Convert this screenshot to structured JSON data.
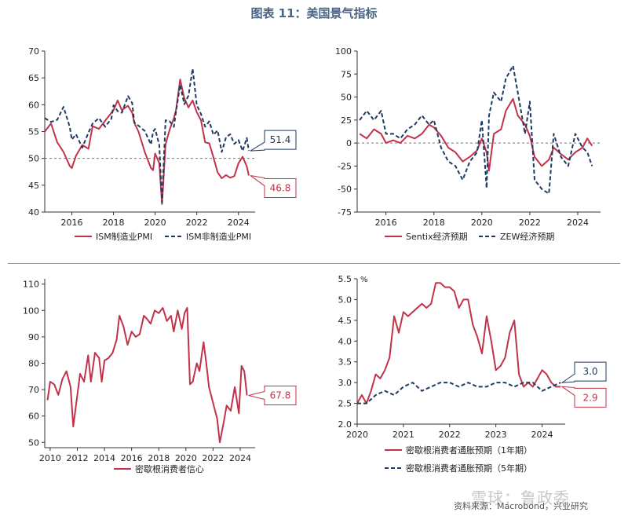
{
  "title": "图表 11：美国景气指标",
  "source": "资料来源：Macrobond，兴业研究",
  "watermark": "雪球：鲁政委",
  "colors": {
    "red": "#c0334a",
    "navy": "#1f3a60",
    "ref": "#777777"
  },
  "chart_data": [
    {
      "type": "line",
      "id": "pmi",
      "ylim": [
        40,
        70
      ],
      "yticks": [
        40,
        45,
        50,
        55,
        60,
        65,
        70
      ],
      "xlim": [
        2014.7,
        2024.8
      ],
      "xticks": [
        2016,
        2018,
        2020,
        2022,
        2024
      ],
      "reference_line": 50,
      "callouts": [
        {
          "label": "51.4",
          "value": 51.4,
          "series": 1
        },
        {
          "label": "46.8",
          "value": 46.8,
          "series": 0
        }
      ],
      "series": [
        {
          "name": "ISM制造业PMI",
          "style": "solid",
          "color": "red",
          "x": [
            2014.7,
            2015.0,
            2015.3,
            2015.6,
            2015.9,
            2016.0,
            2016.2,
            2016.5,
            2016.8,
            2017.0,
            2017.3,
            2017.6,
            2017.9,
            2018.0,
            2018.2,
            2018.4,
            2018.7,
            2018.9,
            2019.0,
            2019.2,
            2019.5,
            2019.8,
            2019.9,
            2020.0,
            2020.2,
            2020.33,
            2020.5,
            2020.7,
            2020.9,
            2021.0,
            2021.2,
            2021.4,
            2021.6,
            2021.8,
            2022.0,
            2022.2,
            2022.4,
            2022.6,
            2022.8,
            2023.0,
            2023.2,
            2023.4,
            2023.6,
            2023.8,
            2024.0,
            2024.2,
            2024.4,
            2024.5
          ],
          "y": [
            55,
            56.5,
            53,
            51.2,
            48.6,
            48.2,
            50.5,
            52.5,
            51.8,
            56,
            55.5,
            57,
            58.5,
            59,
            60.8,
            59,
            59.8,
            58.5,
            56.6,
            55,
            51.2,
            48.2,
            47.8,
            50.9,
            49.1,
            41.5,
            52.6,
            55.4,
            57.5,
            59,
            64.7,
            61.2,
            59.5,
            60.8,
            58.6,
            57.1,
            53,
            52.8,
            50.2,
            47.4,
            46.3,
            46.9,
            46.4,
            46.7,
            49.1,
            50.3,
            48.5,
            46.8
          ]
        },
        {
          "name": "ISM非制造业PMI",
          "style": "dashed",
          "color": "navy",
          "x": [
            2014.7,
            2015.0,
            2015.3,
            2015.6,
            2015.9,
            2016.0,
            2016.2,
            2016.5,
            2016.8,
            2017.0,
            2017.3,
            2017.6,
            2017.9,
            2018.0,
            2018.2,
            2018.4,
            2018.7,
            2018.9,
            2019.0,
            2019.2,
            2019.5,
            2019.8,
            2019.9,
            2020.0,
            2020.2,
            2020.33,
            2020.5,
            2020.7,
            2020.9,
            2021.0,
            2021.2,
            2021.4,
            2021.6,
            2021.8,
            2022.0,
            2022.2,
            2022.4,
            2022.6,
            2022.8,
            2023.0,
            2023.2,
            2023.4,
            2023.6,
            2023.8,
            2024.0,
            2024.2,
            2024.4,
            2024.5
          ],
          "y": [
            57.5,
            56.8,
            57.2,
            59.6,
            55.9,
            53.5,
            54.5,
            52,
            54.8,
            56.5,
            57.5,
            55.9,
            57.4,
            59.9,
            58.8,
            58.5,
            61.6,
            60.3,
            56.7,
            56.1,
            55.1,
            52.6,
            55,
            55.5,
            52.5,
            41.8,
            57.1,
            56.9,
            55.9,
            58.7,
            63.7,
            60.1,
            61.7,
            66.7,
            59.9,
            58.3,
            55.9,
            56.9,
            54.4,
            55.2,
            51.2,
            53.9,
            54.5,
            52.7,
            53.4,
            51.4,
            53.8,
            51.4
          ]
        }
      ],
      "legend": [
        "ISM制造业PMI",
        "ISM非制造业PMI"
      ]
    },
    {
      "type": "line",
      "id": "sentix",
      "ylim": [
        -75,
        100
      ],
      "yticks": [
        -75,
        -50,
        -25,
        0,
        25,
        50,
        75,
        100
      ],
      "xlim": [
        2014.8,
        2024.95
      ],
      "xticks": [
        2016,
        2018,
        2020,
        2022,
        2024
      ],
      "reference_line": 0,
      "series": [
        {
          "name": "Sentix经济预期",
          "style": "solid",
          "color": "red",
          "x": [
            2014.9,
            2015.2,
            2015.5,
            2015.8,
            2016.0,
            2016.3,
            2016.6,
            2016.9,
            2017.2,
            2017.5,
            2017.8,
            2018.0,
            2018.3,
            2018.6,
            2018.9,
            2019.2,
            2019.5,
            2019.8,
            2020.0,
            2020.2,
            2020.3,
            2020.5,
            2020.8,
            2021.0,
            2021.3,
            2021.5,
            2021.8,
            2022.0,
            2022.2,
            2022.5,
            2022.8,
            2023.0,
            2023.3,
            2023.6,
            2023.9,
            2024.2,
            2024.4,
            2024.6
          ],
          "y": [
            10,
            5,
            15,
            10,
            0,
            3,
            0,
            8,
            5,
            10,
            20,
            17,
            8,
            -5,
            -10,
            -20,
            -15,
            -8,
            5,
            -10,
            -30,
            10,
            15,
            35,
            48,
            30,
            20,
            8,
            -15,
            -25,
            -18,
            -5,
            -12,
            -18,
            -10,
            -5,
            5,
            -3
          ]
        },
        {
          "name": "ZEW经济预期",
          "style": "dashed",
          "color": "navy",
          "x": [
            2014.9,
            2015.2,
            2015.5,
            2015.8,
            2016.0,
            2016.3,
            2016.6,
            2016.9,
            2017.2,
            2017.5,
            2017.8,
            2018.0,
            2018.3,
            2018.6,
            2018.9,
            2019.2,
            2019.5,
            2019.8,
            2020.0,
            2020.2,
            2020.3,
            2020.5,
            2020.8,
            2021.0,
            2021.3,
            2021.5,
            2021.8,
            2022.0,
            2022.2,
            2022.5,
            2022.8,
            2023.0,
            2023.3,
            2023.6,
            2023.9,
            2024.2,
            2024.4,
            2024.6
          ],
          "y": [
            25,
            35,
            25,
            35,
            10,
            10,
            5,
            15,
            20,
            30,
            20,
            25,
            -5,
            -20,
            -25,
            -40,
            -20,
            -10,
            25,
            -49,
            30,
            55,
            45,
            70,
            84,
            55,
            10,
            45,
            -40,
            -50,
            -55,
            10,
            -15,
            -25,
            10,
            -5,
            -10,
            -25
          ]
        }
      ],
      "legend": [
        "Sentix经济预期",
        "ZEW经济预期"
      ]
    },
    {
      "type": "line",
      "id": "umich",
      "ylim": [
        48,
        112
      ],
      "yticks": [
        50,
        60,
        70,
        80,
        90,
        100,
        110
      ],
      "xlim": [
        2009.6,
        2025.1
      ],
      "xticks": [
        2010,
        2012,
        2014,
        2016,
        2018,
        2020,
        2022,
        2024
      ],
      "callouts": [
        {
          "label": "67.8",
          "value": 67.8,
          "series": 0
        }
      ],
      "series": [
        {
          "name": "密歇根消费者信心",
          "style": "solid",
          "color": "red",
          "x": [
            2009.8,
            2010.0,
            2010.3,
            2010.6,
            2010.9,
            2011.2,
            2011.5,
            2011.7,
            2011.9,
            2012.2,
            2012.5,
            2012.8,
            2013.0,
            2013.3,
            2013.6,
            2013.8,
            2014.0,
            2014.3,
            2014.6,
            2014.9,
            2015.1,
            2015.4,
            2015.7,
            2016.0,
            2016.3,
            2016.6,
            2016.9,
            2017.1,
            2017.4,
            2017.7,
            2018.0,
            2018.3,
            2018.6,
            2018.9,
            2019.1,
            2019.4,
            2019.7,
            2019.9,
            2020.1,
            2020.3,
            2020.5,
            2020.8,
            2021.0,
            2021.3,
            2021.5,
            2021.7,
            2022.0,
            2022.3,
            2022.5,
            2022.8,
            2023.0,
            2023.3,
            2023.6,
            2023.9,
            2024.1,
            2024.3,
            2024.5
          ],
          "y": [
            66,
            73,
            72,
            68,
            74,
            77,
            71,
            56,
            64,
            76,
            73,
            83,
            73,
            84,
            82,
            73,
            81,
            82,
            84,
            89,
            98,
            94,
            87,
            92,
            90,
            91,
            98,
            97,
            95,
            100,
            99,
            101,
            96,
            98,
            92,
            100,
            93,
            99,
            101,
            72,
            73,
            80,
            77,
            88,
            80,
            71,
            65,
            59,
            50,
            58,
            64,
            62,
            71,
            61,
            79,
            77,
            67.8
          ]
        }
      ],
      "legend": [
        "密歇根消费者信心"
      ]
    },
    {
      "type": "line",
      "id": "inflation",
      "ylim": [
        2.0,
        5.5
      ],
      "yticks": [
        2.0,
        2.5,
        3.0,
        3.5,
        4.0,
        4.5,
        5.0,
        5.5
      ],
      "yunit": "%",
      "xlim": [
        2020.0,
        2024.5
      ],
      "xticks": [
        2020,
        2021,
        2022,
        2023,
        2024
      ],
      "callouts": [
        {
          "label": "3.0",
          "value": 3.0,
          "series": 1
        },
        {
          "label": "2.9",
          "value": 2.9,
          "series": 0
        }
      ],
      "series": [
        {
          "name": "密歇根消费者通胀预期（1年期）",
          "style": "solid",
          "color": "red",
          "x": [
            2020.0,
            2020.1,
            2020.2,
            2020.3,
            2020.4,
            2020.5,
            2020.6,
            2020.7,
            2020.8,
            2020.9,
            2021.0,
            2021.1,
            2021.2,
            2021.3,
            2021.4,
            2021.5,
            2021.6,
            2021.7,
            2021.8,
            2021.9,
            2022.0,
            2022.1,
            2022.2,
            2022.3,
            2022.4,
            2022.5,
            2022.6,
            2022.7,
            2022.8,
            2022.9,
            2023.0,
            2023.1,
            2023.2,
            2023.3,
            2023.4,
            2023.5,
            2023.6,
            2023.7,
            2023.8,
            2023.9,
            2024.0,
            2024.1,
            2024.2,
            2024.3,
            2024.4
          ],
          "y": [
            2.5,
            2.7,
            2.5,
            2.8,
            3.2,
            3.1,
            3.3,
            3.6,
            4.6,
            4.2,
            4.7,
            4.6,
            4.7,
            4.8,
            4.9,
            4.8,
            4.9,
            5.4,
            5.4,
            5.3,
            5.3,
            5.2,
            4.8,
            5.0,
            5.0,
            4.4,
            4.1,
            3.7,
            4.6,
            4.0,
            3.3,
            3.4,
            3.6,
            4.2,
            4.5,
            3.2,
            2.9,
            3.0,
            2.9,
            3.1,
            3.3,
            3.2,
            3.0,
            2.9,
            2.9
          ]
        },
        {
          "name": "密歇根消费者通胀预期（5年期）",
          "style": "dashed",
          "color": "navy",
          "x": [
            2020.0,
            2020.2,
            2020.4,
            2020.6,
            2020.8,
            2021.0,
            2021.2,
            2021.4,
            2021.6,
            2021.8,
            2022.0,
            2022.2,
            2022.4,
            2022.6,
            2022.8,
            2023.0,
            2023.2,
            2023.4,
            2023.6,
            2023.8,
            2024.0,
            2024.2,
            2024.4
          ],
          "y": [
            2.5,
            2.5,
            2.7,
            2.8,
            2.7,
            2.9,
            3.0,
            2.8,
            2.9,
            3.0,
            3.0,
            2.9,
            3.0,
            2.9,
            2.9,
            3.0,
            3.0,
            2.9,
            3.0,
            3.0,
            2.8,
            2.9,
            3.0
          ]
        }
      ],
      "legend": [
        "密歇根消费者通胀预期（1年期）",
        "密歇根消费者通胀预期（5年期）"
      ]
    }
  ]
}
